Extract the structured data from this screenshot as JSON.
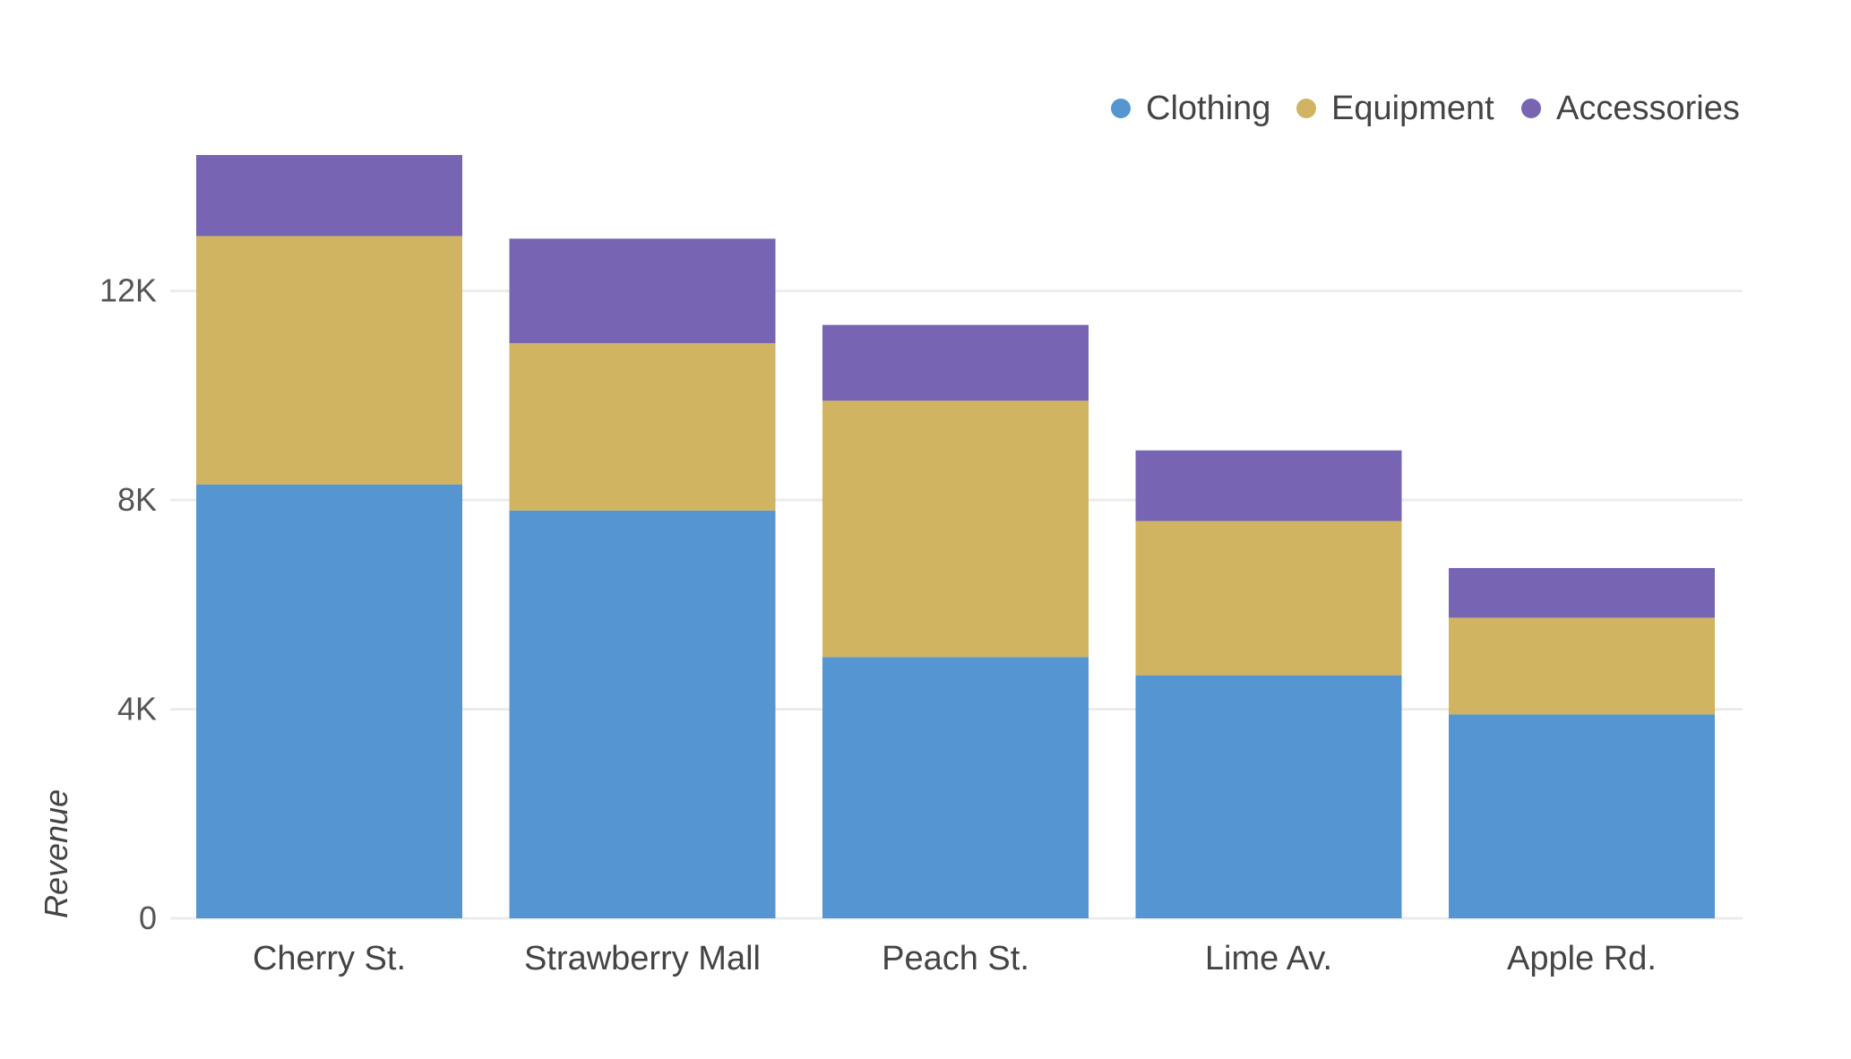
{
  "chart_data": {
    "type": "bar",
    "stacked": true,
    "title": "",
    "xlabel": "",
    "ylabel": "Revenue",
    "ylim": [
      0,
      14600
    ],
    "yticks": [
      0,
      4000,
      8000,
      12000
    ],
    "ytick_labels": [
      "0",
      "4K",
      "8K",
      "12K"
    ],
    "grid": true,
    "legend_position": "top-right",
    "categories": [
      "Cherry St.",
      "Strawberry Mall",
      "Peach St.",
      "Lime Av.",
      "Apple Rd."
    ],
    "series": [
      {
        "name": "Clothing",
        "color": "#5596d2",
        "values": [
          8300,
          7800,
          5000,
          4650,
          3900
        ]
      },
      {
        "name": "Equipment",
        "color": "#d1b462",
        "values": [
          4750,
          3200,
          4900,
          2950,
          1850
        ]
      },
      {
        "name": "Accessories",
        "color": "#7765b3",
        "values": [
          1550,
          2000,
          1450,
          1350,
          950
        ]
      }
    ]
  }
}
